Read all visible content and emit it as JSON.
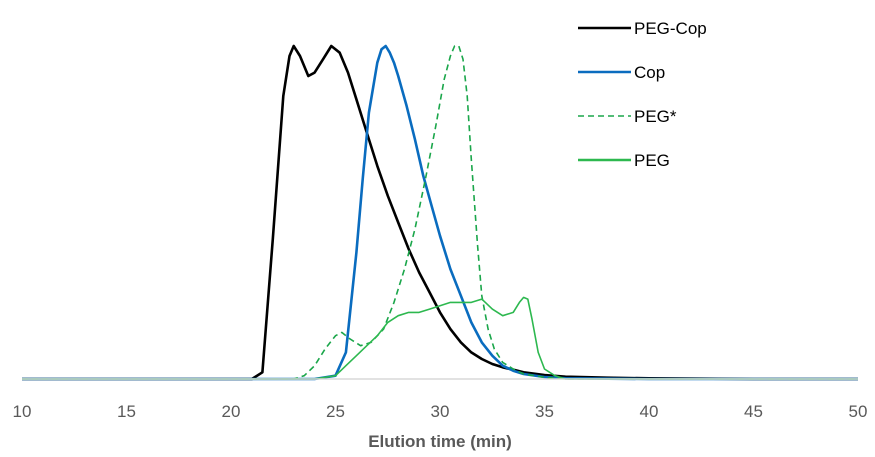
{
  "chart_data": {
    "type": "line",
    "title": "",
    "xlabel": "Elution time (min)",
    "ylabel": "",
    "xlim": [
      10,
      50
    ],
    "ylim": [
      0,
      1.0
    ],
    "x_ticks": [
      "10",
      "15",
      "20",
      "25",
      "30",
      "35",
      "40",
      "45",
      "50"
    ],
    "y_axis_visible": false,
    "grid": false,
    "legend_position": "top-right",
    "series": [
      {
        "name": "PEG-Cop",
        "color": "#000000",
        "dash": "solid",
        "x": [
          10,
          15,
          20,
          21.0,
          21.5,
          22.0,
          22.5,
          22.8,
          23.0,
          23.3,
          23.7,
          24.0,
          24.4,
          24.8,
          25.2,
          25.6,
          26.0,
          26.5,
          27.0,
          27.5,
          28.0,
          28.5,
          29.0,
          29.5,
          30.0,
          30.5,
          31.0,
          31.5,
          32.0,
          32.5,
          33.0,
          33.5,
          34.0,
          35.0,
          36.0,
          38.0,
          40.0,
          45.0,
          50.0
        ],
        "y": [
          0,
          0,
          0,
          0.0,
          0.02,
          0.42,
          0.85,
          0.97,
          1.0,
          0.97,
          0.91,
          0.92,
          0.96,
          1.0,
          0.98,
          0.92,
          0.84,
          0.74,
          0.64,
          0.55,
          0.47,
          0.39,
          0.32,
          0.26,
          0.2,
          0.15,
          0.11,
          0.08,
          0.06,
          0.045,
          0.035,
          0.028,
          0.02,
          0.012,
          0.007,
          0.004,
          0.002,
          0.0,
          0.0
        ]
      },
      {
        "name": "Cop",
        "color": "#0a6cbf",
        "dash": "solid",
        "x": [
          10,
          20,
          24.0,
          25.0,
          25.5,
          26.0,
          26.3,
          26.6,
          27.0,
          27.2,
          27.4,
          27.6,
          27.8,
          28.0,
          28.4,
          28.8,
          29.2,
          29.6,
          30.0,
          30.5,
          31.0,
          31.5,
          32.0,
          32.5,
          33.0,
          33.5,
          34.0,
          35.0,
          36.0,
          40.0,
          50.0
        ],
        "y": [
          0,
          0,
          0,
          0.01,
          0.08,
          0.38,
          0.6,
          0.8,
          0.95,
          0.99,
          1.0,
          0.98,
          0.95,
          0.91,
          0.82,
          0.72,
          0.61,
          0.52,
          0.43,
          0.33,
          0.25,
          0.17,
          0.11,
          0.07,
          0.04,
          0.025,
          0.015,
          0.006,
          0.002,
          0.0,
          0.0
        ]
      },
      {
        "name": "PEG*",
        "color": "#1aa64a",
        "dash": "dashed",
        "x": [
          10,
          20,
          23.0,
          23.5,
          24.0,
          24.5,
          25.0,
          25.3,
          25.7,
          26.2,
          26.7,
          27.3,
          27.8,
          28.3,
          28.8,
          29.3,
          29.8,
          30.2,
          30.5,
          30.7,
          30.9,
          31.1,
          31.3,
          31.5,
          31.8,
          32.0,
          32.3,
          32.6,
          33.0,
          33.5,
          34.0,
          35.0,
          36.0,
          50.0
        ],
        "y": [
          0,
          0,
          0,
          0.01,
          0.04,
          0.09,
          0.13,
          0.14,
          0.12,
          0.1,
          0.11,
          0.15,
          0.23,
          0.33,
          0.45,
          0.6,
          0.76,
          0.9,
          0.97,
          1.0,
          1.0,
          0.96,
          0.85,
          0.66,
          0.4,
          0.25,
          0.15,
          0.09,
          0.05,
          0.03,
          0.015,
          0.005,
          0.0,
          0.0
        ]
      },
      {
        "name": "PEG",
        "color": "#2db84f",
        "dash": "solid",
        "x": [
          10,
          20,
          24.0,
          25.0,
          25.5,
          26.0,
          26.5,
          27.0,
          27.5,
          28.0,
          28.5,
          29.0,
          29.5,
          30.0,
          30.5,
          31.0,
          31.5,
          32.0,
          32.5,
          33.0,
          33.5,
          33.8,
          34.0,
          34.2,
          34.4,
          34.7,
          35.0,
          35.5,
          36.0,
          50.0
        ],
        "y": [
          0,
          0,
          0,
          0.01,
          0.04,
          0.07,
          0.1,
          0.13,
          0.17,
          0.19,
          0.2,
          0.2,
          0.21,
          0.22,
          0.23,
          0.23,
          0.23,
          0.24,
          0.21,
          0.19,
          0.2,
          0.23,
          0.245,
          0.24,
          0.18,
          0.08,
          0.03,
          0.01,
          0.0,
          0.0
        ]
      }
    ]
  }
}
